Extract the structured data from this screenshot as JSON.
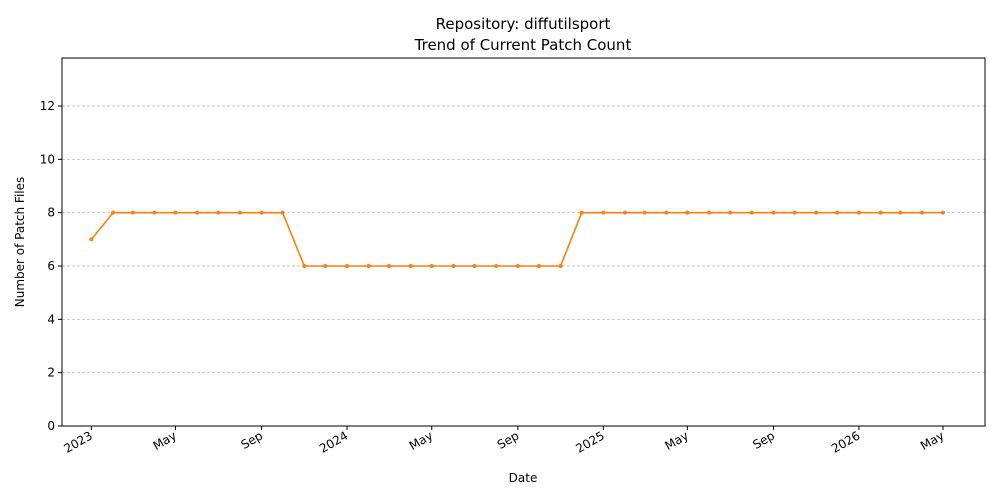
{
  "chart_data": {
    "type": "line",
    "title_line1": "Repository: diffutilsport",
    "title_line2": "Trend of Current Patch Count",
    "xlabel": "Date",
    "ylabel": "Number of Patch Files",
    "ylim": [
      0,
      13.8
    ],
    "yticks": [
      0,
      2,
      4,
      6,
      8,
      10,
      12
    ],
    "xlim": [
      "2022-11-20",
      "2026-06-30"
    ],
    "xticks": [
      {
        "date": "2023-01-01",
        "label": "2023"
      },
      {
        "date": "2023-05-01",
        "label": "May"
      },
      {
        "date": "2023-09-01",
        "label": "Sep"
      },
      {
        "date": "2024-01-01",
        "label": "2024"
      },
      {
        "date": "2024-05-01",
        "label": "May"
      },
      {
        "date": "2024-09-01",
        "label": "Sep"
      },
      {
        "date": "2025-01-01",
        "label": "2025"
      },
      {
        "date": "2025-05-01",
        "label": "May"
      },
      {
        "date": "2025-09-01",
        "label": "Sep"
      },
      {
        "date": "2026-01-01",
        "label": "2026"
      },
      {
        "date": "2026-05-01",
        "label": "May"
      }
    ],
    "grid": "y-dashed",
    "line_color": "#ff7f0e",
    "series": [
      {
        "x": [
          "2023-01-01",
          "2023-02-01",
          "2023-03-01",
          "2023-04-01",
          "2023-05-01",
          "2023-06-01",
          "2023-07-01",
          "2023-08-01",
          "2023-09-01",
          "2023-10-01",
          "2023-11-01",
          "2023-12-01",
          "2024-01-01",
          "2024-02-01",
          "2024-03-01",
          "2024-04-01",
          "2024-05-01",
          "2024-06-01",
          "2024-07-01",
          "2024-08-01",
          "2024-09-01",
          "2024-10-01",
          "2024-11-01",
          "2024-12-01",
          "2025-01-01",
          "2025-02-01",
          "2025-03-01",
          "2025-04-01",
          "2025-05-01",
          "2025-06-01",
          "2025-07-01",
          "2025-08-01",
          "2025-09-01",
          "2025-10-01",
          "2025-11-01",
          "2025-12-01",
          "2026-01-01",
          "2026-02-01",
          "2026-03-01",
          "2026-04-01",
          "2026-05-01"
        ],
        "values": [
          7,
          8,
          8,
          8,
          8,
          8,
          8,
          8,
          8,
          8,
          6,
          6,
          6,
          6,
          6,
          6,
          6,
          6,
          6,
          6,
          6,
          6,
          6,
          8,
          8,
          8,
          8,
          8,
          8,
          8,
          8,
          8,
          8,
          8,
          8,
          8,
          8,
          8,
          8,
          8,
          8
        ]
      }
    ]
  }
}
